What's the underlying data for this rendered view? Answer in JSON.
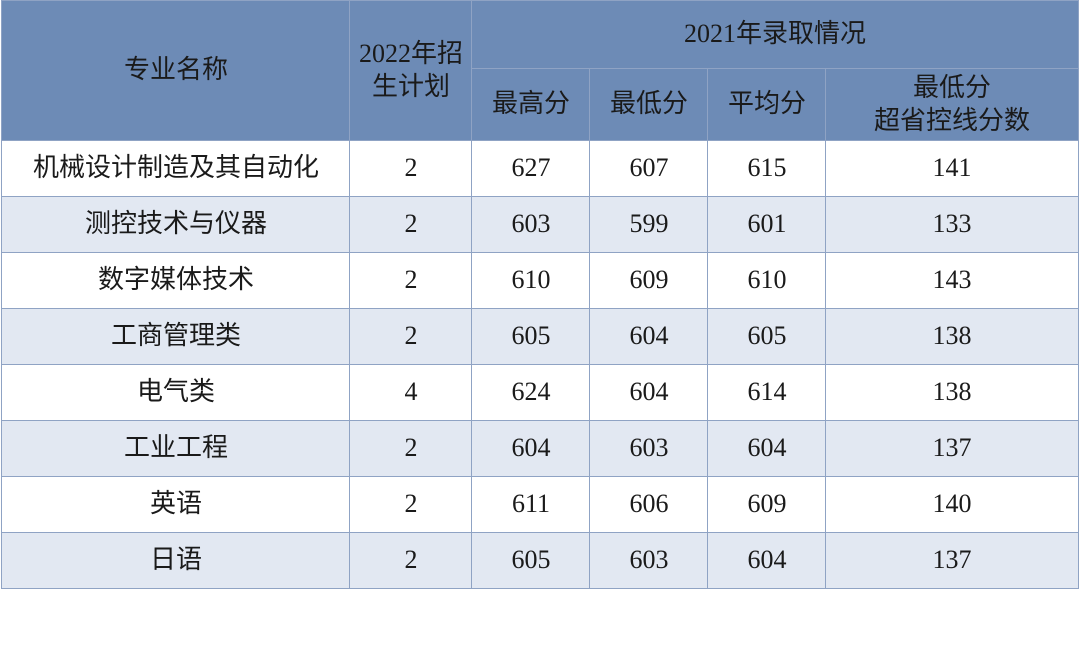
{
  "table": {
    "type": "table",
    "header_bg": "#6d8bb6",
    "header_fg": "#1a1a1a",
    "row_odd_bg": "#ffffff",
    "row_even_bg": "#e2e8f2",
    "border_color": "#8fa3c4",
    "cell_fg": "#1a1a1a",
    "font_size_pt": 20,
    "columns": {
      "major_label": "专业名称",
      "plan_label_line1": "2022年招",
      "plan_label_line2": "生计划",
      "admission_group_label": "2021年录取情况",
      "max_label": "最高分",
      "min_label": "最低分",
      "avg_label": "平均分",
      "diff_label_line1": "最低分",
      "diff_label_line2": "超省控线分数"
    },
    "rows": [
      {
        "major": "机械设计制造及其自动化",
        "plan": "2",
        "max": "627",
        "min": "607",
        "avg": "615",
        "diff": "141"
      },
      {
        "major": "测控技术与仪器",
        "plan": "2",
        "max": "603",
        "min": "599",
        "avg": "601",
        "diff": "133"
      },
      {
        "major": "数字媒体技术",
        "plan": "2",
        "max": "610",
        "min": "609",
        "avg": "610",
        "diff": "143"
      },
      {
        "major": "工商管理类",
        "plan": "2",
        "max": "605",
        "min": "604",
        "avg": "605",
        "diff": "138"
      },
      {
        "major": "电气类",
        "plan": "4",
        "max": "624",
        "min": "604",
        "avg": "614",
        "diff": "138"
      },
      {
        "major": "工业工程",
        "plan": "2",
        "max": "604",
        "min": "603",
        "avg": "604",
        "diff": "137"
      },
      {
        "major": "英语",
        "plan": "2",
        "max": "611",
        "min": "606",
        "avg": "609",
        "diff": "140"
      },
      {
        "major": "日语",
        "plan": "2",
        "max": "605",
        "min": "603",
        "avg": "604",
        "diff": "137"
      }
    ]
  }
}
